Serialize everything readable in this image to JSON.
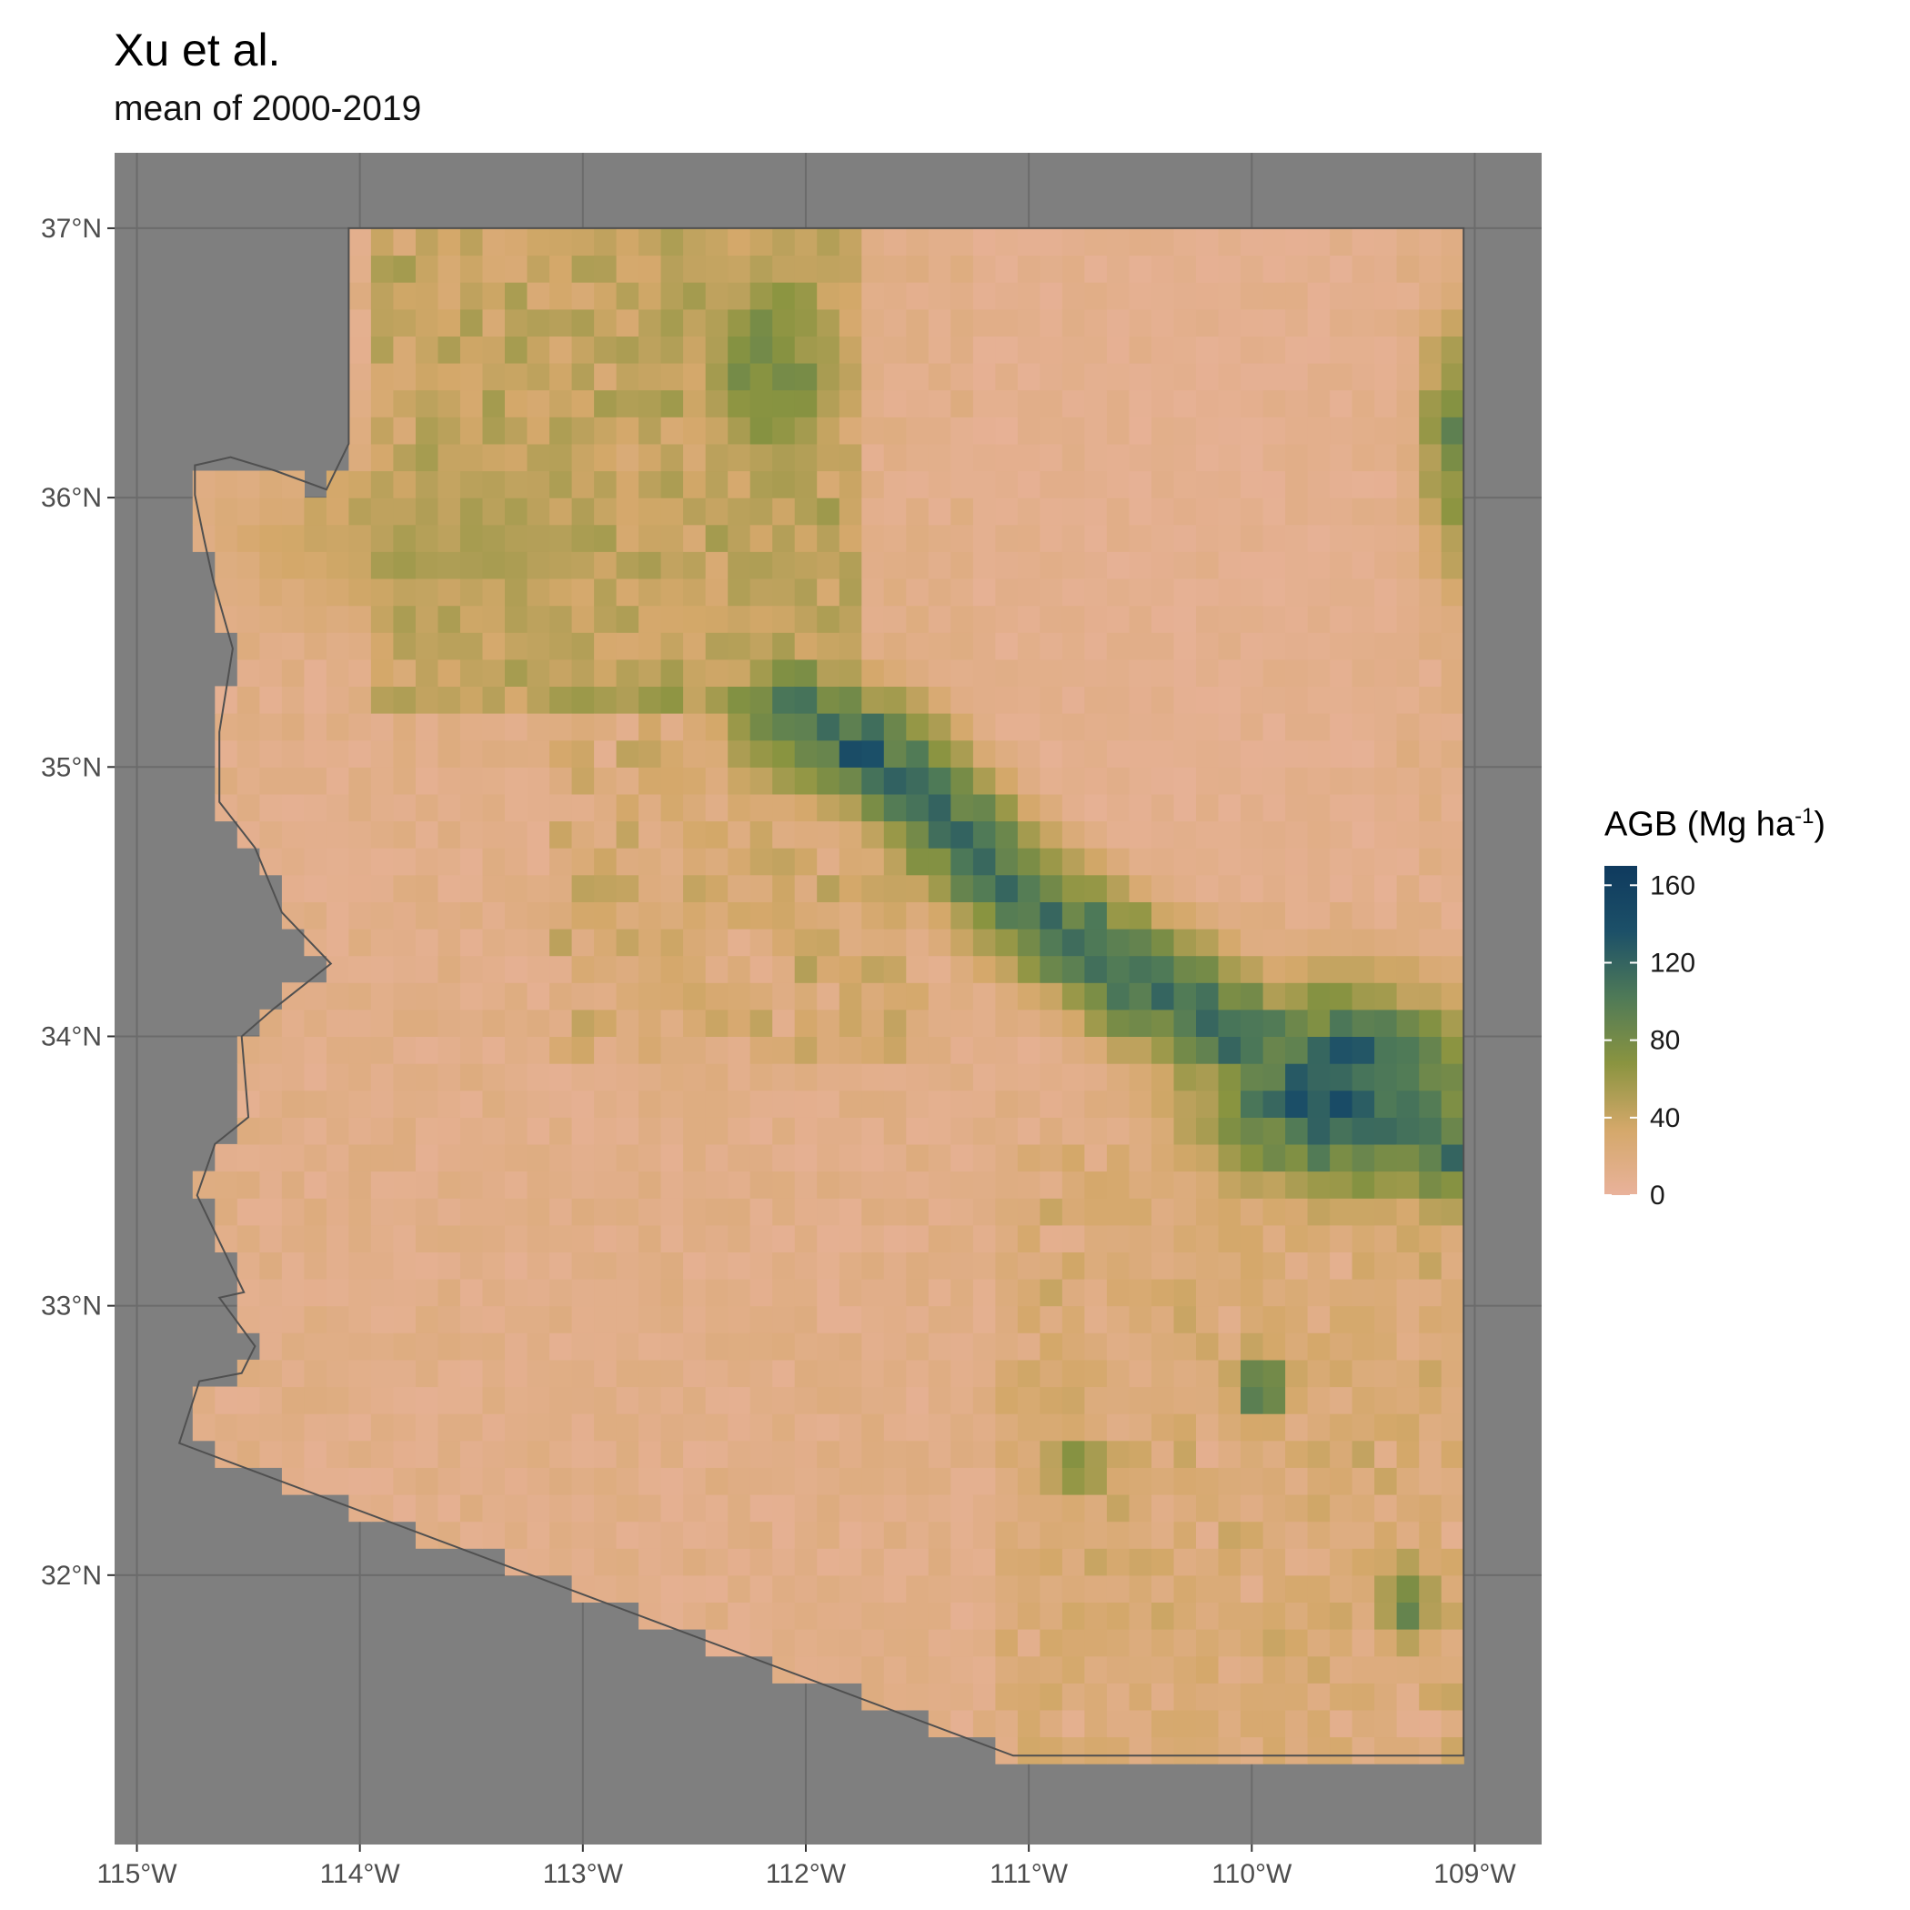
{
  "title": "Xu et al.",
  "subtitle": "mean of 2000-2019",
  "legend": {
    "title_main": "AGB (Mg ha",
    "title_sup": "-1",
    "title_end": ")",
    "breaks": [
      0,
      40,
      80,
      120,
      160
    ],
    "range": [
      0,
      170
    ],
    "colors": [
      "#e9b29b",
      "#d4a86a",
      "#8a9440",
      "#4f7a57",
      "#1c5068",
      "#0f3a5e"
    ]
  },
  "colors": {
    "panel_background": "#7f7f7f",
    "grid": "#6b6b6b",
    "boundary": "#505050"
  },
  "chart_data": {
    "type": "heatmap",
    "variable": "AGB",
    "units": "Mg ha-1",
    "x_ticks": [
      "115°W",
      "114°W",
      "113°W",
      "112°W",
      "111°W",
      "110°W",
      "109°W"
    ],
    "x_tick_values": [
      -115,
      -114,
      -113,
      -112,
      -111,
      -110,
      -109
    ],
    "y_ticks": [
      "32°N",
      "33°N",
      "34°N",
      "35°N",
      "36°N",
      "37°N"
    ],
    "y_tick_values": [
      32,
      33,
      34,
      35,
      36,
      37
    ],
    "xlim": [
      -115.1,
      -108.7
    ],
    "ylim": [
      31.0,
      37.28
    ],
    "grid": true,
    "legend_position": "right",
    "state_outline_lonlat": [
      [
        -114.05,
        37.0
      ],
      [
        -109.05,
        37.0
      ],
      [
        -109.05,
        31.33
      ],
      [
        -111.07,
        31.33
      ],
      [
        -114.81,
        32.49
      ],
      [
        -114.72,
        32.72
      ],
      [
        -114.53,
        32.75
      ],
      [
        -114.47,
        32.85
      ],
      [
        -114.63,
        33.03
      ],
      [
        -114.52,
        33.05
      ],
      [
        -114.73,
        33.41
      ],
      [
        -114.65,
        33.6
      ],
      [
        -114.5,
        33.7
      ],
      [
        -114.53,
        34.0
      ],
      [
        -114.39,
        34.1
      ],
      [
        -114.13,
        34.27
      ],
      [
        -114.35,
        34.46
      ],
      [
        -114.47,
        34.7
      ],
      [
        -114.63,
        34.87
      ],
      [
        -114.63,
        35.13
      ],
      [
        -114.57,
        35.44
      ],
      [
        -114.66,
        35.7
      ],
      [
        -114.7,
        35.85
      ],
      [
        -114.74,
        36.01
      ],
      [
        -114.74,
        36.12
      ],
      [
        -114.58,
        36.15
      ],
      [
        -114.38,
        36.1
      ],
      [
        -114.15,
        36.03
      ],
      [
        -114.05,
        36.2
      ],
      [
        -114.05,
        37.0
      ]
    ],
    "zones": [
      {
        "name": "mogollon-rim-belt",
        "path_lonlat": [
          [
            -112.1,
            35.2
          ],
          [
            -111.6,
            35.0
          ],
          [
            -111.1,
            34.55
          ],
          [
            -110.5,
            34.2
          ],
          [
            -109.85,
            33.9
          ],
          [
            -109.4,
            33.7
          ],
          [
            -109.1,
            33.6
          ]
        ],
        "width_deg": 0.2,
        "peak": 125
      },
      {
        "name": "white-mountains",
        "center": [
          -109.6,
          33.8
        ],
        "radius": [
          0.5,
          0.3
        ],
        "peak": 155
      },
      {
        "name": "san-francisco-peaks",
        "center": [
          -111.75,
          35.05
        ],
        "radius": [
          0.2,
          0.15
        ],
        "peak": 150
      },
      {
        "name": "north-rim-kaibab",
        "center": [
          -112.15,
          36.5
        ],
        "radius": [
          0.25,
          0.35
        ],
        "peak": 100
      },
      {
        "name": "chuska-mountains",
        "center": [
          -109.1,
          36.2
        ],
        "radius": [
          0.12,
          0.4
        ],
        "peak": 95
      },
      {
        "name": "hualapai-upland",
        "center": [
          -113.5,
          35.85
        ],
        "radius": [
          0.9,
          0.3
        ],
        "peak": 60
      },
      {
        "name": "pinaleno-mountains",
        "center": [
          -109.95,
          32.7
        ],
        "radius": [
          0.12,
          0.12
        ],
        "peak": 115
      },
      {
        "name": "chiricahua-mountains",
        "center": [
          -109.3,
          31.9
        ],
        "radius": [
          0.12,
          0.15
        ],
        "peak": 100
      },
      {
        "name": "santa-catalina",
        "center": [
          -110.8,
          32.4
        ],
        "radius": [
          0.15,
          0.12
        ],
        "peak": 85
      }
    ]
  }
}
